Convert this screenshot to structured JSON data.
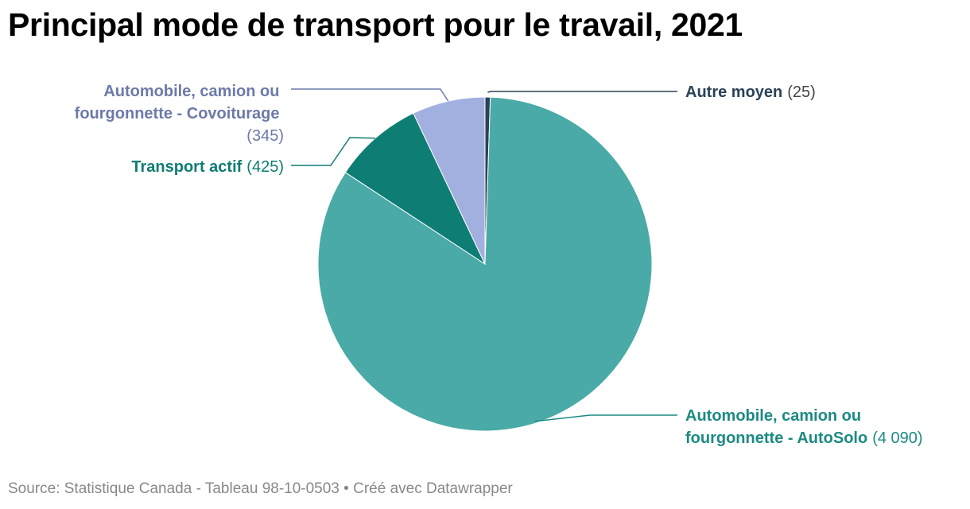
{
  "title": "Principal mode de transport pour le travail, 2021",
  "footer": {
    "source": "Source: Statistique Canada - Tableau 98-10-0503",
    "separator": "•",
    "credit": "Créé avec Datawrapper"
  },
  "chart_data": {
    "type": "pie",
    "title": "Principal mode de transport pour le travail, 2021",
    "slices": [
      {
        "label": "Autre moyen",
        "value": 25,
        "value_label": "(25)",
        "color": "#2b4257"
      },
      {
        "label": "Automobile, camion ou fourgonnette - AutoSolo",
        "value": 4090,
        "value_label": "(4 090)",
        "color": "#49aaa7"
      },
      {
        "label": "Transport actif",
        "value": 425,
        "value_label": "(425)",
        "color": "#0e7d74"
      },
      {
        "label": "Automobile, camion ou fourgonnette - Covoiturage",
        "value": 345,
        "value_label": "(345)",
        "color": "#a2b0e0"
      }
    ],
    "label_colors": {
      "Autre moyen": "#2b4257",
      "Automobile, camion ou fourgonnette - AutoSolo": "#1c8a83",
      "Transport actif": "#0e7d74",
      "Automobile, camion ou fourgonnette - Covoiturage": "#6c7aa8"
    },
    "value_color": "#444444"
  }
}
